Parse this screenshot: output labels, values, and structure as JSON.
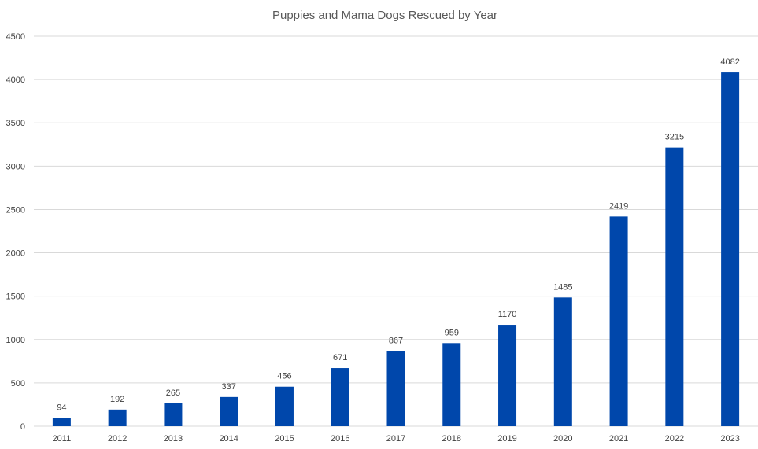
{
  "chart_data": {
    "type": "bar",
    "title": "Puppies and Mama Dogs Rescued by Year",
    "xlabel": "",
    "ylabel": "",
    "categories": [
      "2011",
      "2012",
      "2013",
      "2014",
      "2015",
      "2016",
      "2017",
      "2018",
      "2019",
      "2020",
      "2021",
      "2022",
      "2023"
    ],
    "values": [
      94,
      192,
      265,
      337,
      456,
      671,
      867,
      959,
      1170,
      1485,
      2419,
      3215,
      4082
    ],
    "ylim": [
      0,
      4500
    ],
    "yticks": [
      0,
      500,
      1000,
      1500,
      2000,
      2500,
      3000,
      3500,
      4000,
      4500
    ],
    "grid": true,
    "legend": "none",
    "bar_color": "#0047AB",
    "data_labels": true
  }
}
